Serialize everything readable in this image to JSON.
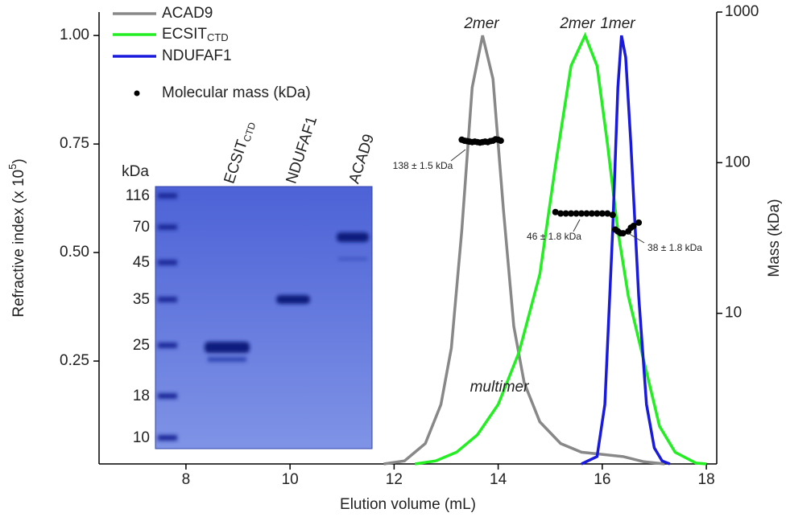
{
  "chart_data": {
    "type": "line",
    "xlabel": "Elution volume (mL)",
    "ylabel": "Refractive index (x 10",
    "ylabel_sup": "5",
    "ylabel_end": ")",
    "y2label": "Mass (kDa)",
    "xlim": [
      6.33,
      18.2
    ],
    "ylim": [
      0.013,
      1.054
    ],
    "y2lim": [
      1,
      1000
    ],
    "y2log": true,
    "xticks": [
      8,
      10,
      12,
      14,
      16,
      18
    ],
    "yticks": [
      {
        "value": 0.25,
        "label": "0.25"
      },
      {
        "value": 0.5,
        "label": "0.50"
      },
      {
        "value": 0.75,
        "label": "0.75"
      },
      {
        "value": 1,
        "label": "1.00"
      }
    ],
    "y2ticks": [
      10,
      100,
      1000
    ],
    "legend": "upper left",
    "series": [
      {
        "name": "ACAD9",
        "color": "#888888",
        "x": [
          11.8,
          12.2,
          12.6,
          12.9,
          13.1,
          13.3,
          13.5,
          13.7,
          13.9,
          14.1,
          14.3,
          14.5,
          14.8,
          15.2,
          15.6,
          16.0,
          16.4,
          16.8,
          17.2
        ],
        "values": [
          0.013,
          0.02,
          0.06,
          0.15,
          0.28,
          0.55,
          0.88,
          1.0,
          0.9,
          0.6,
          0.33,
          0.2,
          0.11,
          0.06,
          0.04,
          0.035,
          0.03,
          0.018,
          0.013
        ]
      },
      {
        "name": "ECSIT",
        "name_sub": "CTD",
        "color": "#22ee22",
        "x": [
          12.4,
          12.8,
          13.2,
          13.6,
          14.0,
          14.4,
          14.8,
          15.1,
          15.4,
          15.67,
          15.9,
          16.1,
          16.3,
          16.5,
          16.7,
          16.9,
          17.1,
          17.4,
          17.8,
          18.0
        ],
        "values": [
          0.013,
          0.02,
          0.04,
          0.08,
          0.15,
          0.27,
          0.45,
          0.7,
          0.93,
          1.0,
          0.93,
          0.75,
          0.55,
          0.4,
          0.3,
          0.2,
          0.1,
          0.04,
          0.015,
          0.013
        ]
      },
      {
        "name": "NDUFAF1",
        "color": "#1a1add",
        "x": [
          15.6,
          15.9,
          16.05,
          16.2,
          16.3,
          16.37,
          16.45,
          16.55,
          16.7,
          16.85,
          17.0,
          17.15,
          17.3
        ],
        "values": [
          0.013,
          0.03,
          0.15,
          0.55,
          0.88,
          1.0,
          0.95,
          0.75,
          0.4,
          0.15,
          0.05,
          0.02,
          0.013
        ]
      },
      {
        "name": "Molecular mass (kDa)",
        "color": "#000000",
        "axis": "y2",
        "kind": "scatter",
        "x": [
          13.3,
          13.35,
          13.4,
          13.45,
          13.5,
          13.55,
          13.6,
          13.65,
          13.7,
          13.75,
          13.8,
          13.85,
          13.9,
          13.95,
          14.0,
          14.05,
          15.1,
          15.2,
          15.3,
          15.4,
          15.5,
          15.6,
          15.7,
          15.8,
          15.9,
          16.0,
          16.1,
          16.2,
          16.25,
          16.3,
          16.35,
          16.4,
          16.5,
          16.55,
          16.6,
          16.7
        ],
        "values": [
          142,
          140,
          139,
          138,
          137,
          138,
          137,
          136,
          137,
          138,
          137,
          139,
          140,
          143,
          142,
          140,
          47,
          46,
          46,
          46,
          46,
          46,
          46,
          46,
          46,
          46,
          46,
          45,
          36,
          35,
          34,
          34,
          35,
          37,
          38,
          40
        ]
      }
    ],
    "annotations": [
      "2mer",
      "2mer",
      "1mer",
      "multimer",
      "138 ± 1.5 kDa",
      "46 ± 1.8 kDa",
      "38 ± 1.8 kDa"
    ],
    "gel": {
      "unit": "kDa",
      "markers": [
        "116",
        "70",
        "45",
        "35",
        "25",
        "18",
        "10"
      ],
      "lanes": [
        "ECSIT",
        "NDUFAF1",
        "ACAD9"
      ],
      "lane_sub": "CTD"
    }
  }
}
